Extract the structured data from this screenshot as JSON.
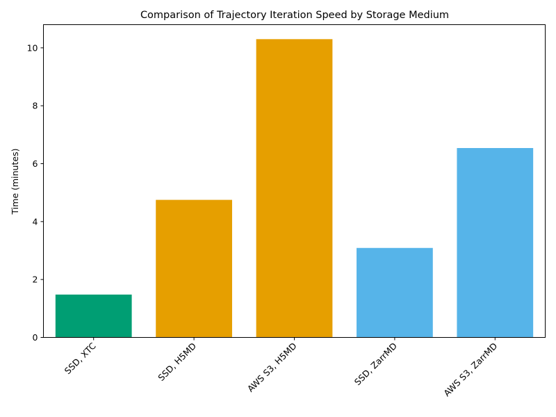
{
  "chart_data": {
    "type": "bar",
    "title": "Comparison of Trajectory Iteration Speed by Storage Medium",
    "xlabel": "",
    "ylabel": "Time (minutes)",
    "categories": [
      "SSD, XTC",
      "SSD, H5MD",
      "AWS S3, H5MD",
      "SSD, ZarrMD",
      "AWS S3, ZarrMD"
    ],
    "values": [
      1.48,
      4.75,
      10.3,
      3.09,
      6.54
    ],
    "colors": [
      "#009E73",
      "#E69F00",
      "#E69F00",
      "#56B4E9",
      "#56B4E9"
    ],
    "ylim": [
      0,
      10.8
    ],
    "yticks": [
      0,
      2,
      4,
      6,
      8,
      10
    ],
    "grid": false,
    "legend": "none"
  }
}
